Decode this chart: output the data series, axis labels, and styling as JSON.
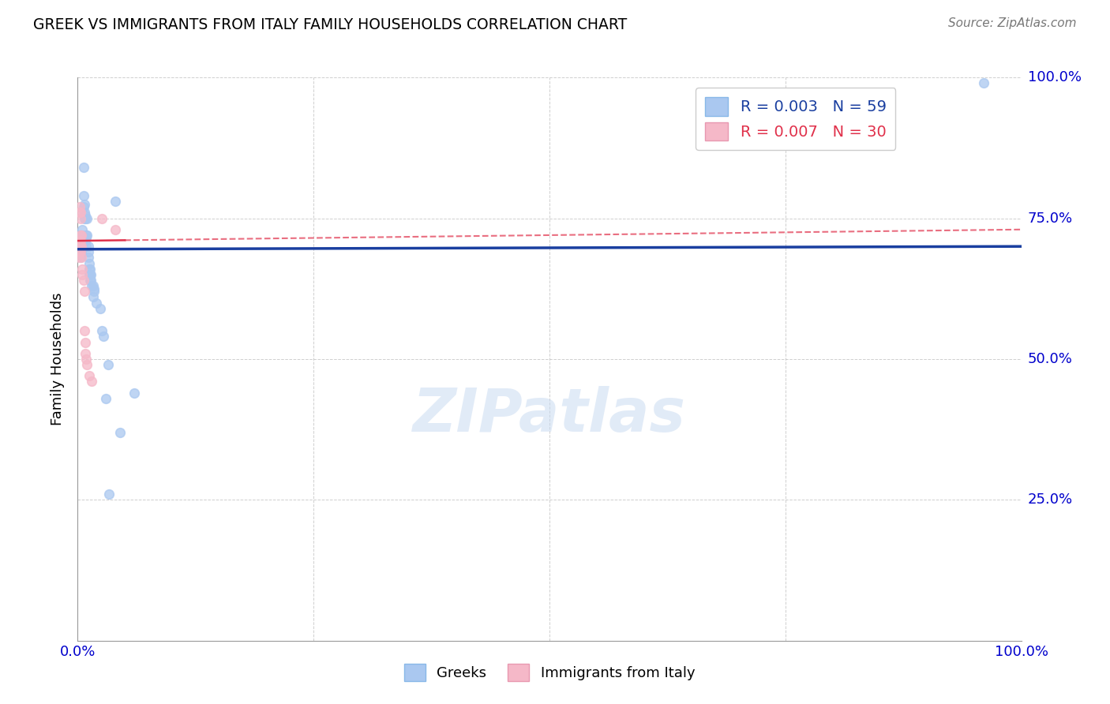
{
  "title": "GREEK VS IMMIGRANTS FROM ITALY FAMILY HOUSEHOLDS CORRELATION CHART",
  "source": "Source: ZipAtlas.com",
  "ylabel": "Family Households",
  "watermark": "ZIPatlas",
  "blue_color": "#aac8f0",
  "pink_color": "#f5b8c8",
  "trend_blue": "#1a3fa0",
  "trend_pink": "#e0304a",
  "xlim": [
    0,
    1
  ],
  "ylim": [
    0,
    1
  ],
  "blue_points": [
    [
      0.002,
      0.7
    ],
    [
      0.002,
      0.72
    ],
    [
      0.002,
      0.695
    ],
    [
      0.003,
      0.71
    ],
    [
      0.003,
      0.7
    ],
    [
      0.003,
      0.68
    ],
    [
      0.003,
      0.69
    ],
    [
      0.003,
      0.705
    ],
    [
      0.003,
      0.715
    ],
    [
      0.003,
      0.695
    ],
    [
      0.004,
      0.7
    ],
    [
      0.004,
      0.71
    ],
    [
      0.004,
      0.72
    ],
    [
      0.004,
      0.69
    ],
    [
      0.004,
      0.7
    ],
    [
      0.005,
      0.73
    ],
    [
      0.005,
      0.715
    ],
    [
      0.005,
      0.7
    ],
    [
      0.006,
      0.79
    ],
    [
      0.006,
      0.84
    ],
    [
      0.006,
      0.77
    ],
    [
      0.007,
      0.76
    ],
    [
      0.007,
      0.75
    ],
    [
      0.007,
      0.775
    ],
    [
      0.008,
      0.75
    ],
    [
      0.008,
      0.755
    ],
    [
      0.008,
      0.71
    ],
    [
      0.009,
      0.72
    ],
    [
      0.009,
      0.7
    ],
    [
      0.009,
      0.715
    ],
    [
      0.01,
      0.75
    ],
    [
      0.01,
      0.72
    ],
    [
      0.011,
      0.68
    ],
    [
      0.011,
      0.7
    ],
    [
      0.011,
      0.69
    ],
    [
      0.012,
      0.66
    ],
    [
      0.012,
      0.65
    ],
    [
      0.012,
      0.67
    ],
    [
      0.013,
      0.64
    ],
    [
      0.013,
      0.66
    ],
    [
      0.013,
      0.65
    ],
    [
      0.014,
      0.65
    ],
    [
      0.014,
      0.64
    ],
    [
      0.015,
      0.63
    ],
    [
      0.016,
      0.61
    ],
    [
      0.016,
      0.63
    ],
    [
      0.017,
      0.625
    ],
    [
      0.017,
      0.62
    ],
    [
      0.02,
      0.6
    ],
    [
      0.024,
      0.59
    ],
    [
      0.026,
      0.55
    ],
    [
      0.027,
      0.54
    ],
    [
      0.03,
      0.43
    ],
    [
      0.032,
      0.49
    ],
    [
      0.033,
      0.26
    ],
    [
      0.04,
      0.78
    ],
    [
      0.045,
      0.37
    ],
    [
      0.06,
      0.44
    ],
    [
      0.96,
      0.99
    ]
  ],
  "pink_points": [
    [
      0.001,
      0.69
    ],
    [
      0.001,
      0.68
    ],
    [
      0.002,
      0.69
    ],
    [
      0.002,
      0.7
    ],
    [
      0.002,
      0.71
    ],
    [
      0.002,
      0.7
    ],
    [
      0.002,
      0.76
    ],
    [
      0.002,
      0.77
    ],
    [
      0.003,
      0.72
    ],
    [
      0.003,
      0.71
    ],
    [
      0.003,
      0.7
    ],
    [
      0.003,
      0.69
    ],
    [
      0.003,
      0.75
    ],
    [
      0.003,
      0.76
    ],
    [
      0.004,
      0.72
    ],
    [
      0.004,
      0.7
    ],
    [
      0.004,
      0.68
    ],
    [
      0.005,
      0.66
    ],
    [
      0.005,
      0.65
    ],
    [
      0.006,
      0.64
    ],
    [
      0.007,
      0.62
    ],
    [
      0.007,
      0.55
    ],
    [
      0.008,
      0.53
    ],
    [
      0.008,
      0.51
    ],
    [
      0.009,
      0.5
    ],
    [
      0.01,
      0.49
    ],
    [
      0.012,
      0.47
    ],
    [
      0.015,
      0.46
    ],
    [
      0.026,
      0.75
    ],
    [
      0.04,
      0.73
    ]
  ],
  "blue_trend_x": [
    0.0,
    1.0
  ],
  "blue_trend_y": [
    0.695,
    0.7
  ],
  "pink_trend_x": [
    0.0,
    1.0
  ],
  "pink_trend_y": [
    0.71,
    0.73
  ],
  "background_color": "#ffffff",
  "grid_color": "#bbbbbb",
  "axis_color": "#0000cc",
  "marker_size": 70
}
